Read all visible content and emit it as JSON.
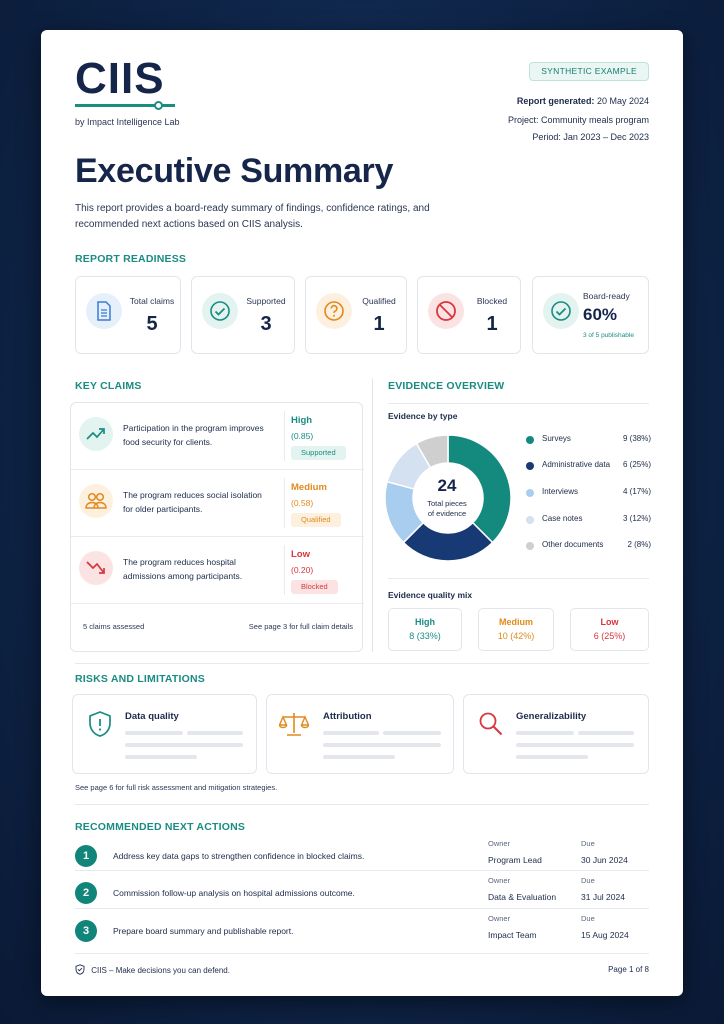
{
  "header": {
    "logo": "CIIS",
    "byline": "by Impact Intelligence Lab",
    "badge": "SYNTHETIC EXAMPLE",
    "report_generated_label": "Report generated:",
    "report_generated": "20 May 2024",
    "project_label": "Project:",
    "project": "Community meals program",
    "period_label": "Period:",
    "period": "Jan 2023 – Dec 2023"
  },
  "title": "Executive Summary",
  "intro": "This report provides a board-ready summary of findings, confidence ratings, and recommended next actions based on CIIS analysis.",
  "readiness": {
    "title": "REPORT READINESS",
    "stats": [
      {
        "label": "Total claims",
        "value": "5",
        "icon": "document-icon",
        "color": "#3a7bd5",
        "bg": "#e6f0fb"
      },
      {
        "label": "Supported",
        "value": "3",
        "icon": "check-circle-icon",
        "color": "#1a8c82",
        "bg": "#e3f3ef"
      },
      {
        "label": "Qualified",
        "value": "1",
        "icon": "question-circle-icon",
        "color": "#e08a1e",
        "bg": "#fdf0de"
      },
      {
        "label": "Blocked",
        "value": "1",
        "icon": "block-icon",
        "color": "#d9363e",
        "bg": "#fbe3e4"
      },
      {
        "label": "Board-ready",
        "value": "60%",
        "sub": "3 of 5 publishable",
        "icon": "check-circle-icon",
        "color": "#1a8c82",
        "bg": "#e3f3ef"
      }
    ]
  },
  "key_claims": {
    "title": "KEY CLAIMS",
    "claims": [
      {
        "text": "Participation in the program improves food security for clients.",
        "level": "High",
        "score": "(0.85)",
        "badge": "Supported",
        "color": "#1a8c82",
        "badge_bg": "#e3f3ef",
        "icon": "trend-up-icon",
        "icon_bg": "#e3f3ef"
      },
      {
        "text": "The program reduces social isolation for older participants.",
        "level": "Medium",
        "score": "(0.58)",
        "badge": "Qualified",
        "color": "#e08a1e",
        "badge_bg": "#fdf0de",
        "icon": "people-icon",
        "icon_bg": "#fdf0de"
      },
      {
        "text": "The program reduces hospital admissions among participants.",
        "level": "Low",
        "score": "(0.20)",
        "badge": "Blocked",
        "color": "#d9363e",
        "badge_bg": "#fbe3e4",
        "icon": "trend-down-icon",
        "icon_bg": "#fbe3e4"
      }
    ],
    "footer_left": "5 claims assessed",
    "footer_right": "See page 3 for full claim details"
  },
  "evidence": {
    "title": "EVIDENCE OVERVIEW",
    "by_type_title": "Evidence by type",
    "center_value": "24",
    "center_label_1": "Total pieces",
    "center_label_2": "of evidence",
    "quality_title": "Evidence quality mix",
    "quality": [
      {
        "label": "High",
        "value": "8 (33%)",
        "color": "#1a8c82"
      },
      {
        "label": "Medium",
        "value": "10 (42%)",
        "color": "#e08a1e"
      },
      {
        "label": "Low",
        "value": "6 (25%)",
        "color": "#d9363e"
      }
    ]
  },
  "chart_data": {
    "type": "pie",
    "categories": [
      "Surveys",
      "Administrative data",
      "Interviews",
      "Case notes",
      "Other documents"
    ],
    "values": [
      9,
      6,
      4,
      3,
      2
    ],
    "labels": [
      "9 (38%)",
      "6 (25%)",
      "4 (17%)",
      "3 (12%)",
      "2 (8%)"
    ],
    "colors": [
      "#14897e",
      "#173a75",
      "#a9cdee",
      "#d3e1f0",
      "#cfcfcf"
    ],
    "title": "Evidence by type",
    "donut": true
  },
  "risks": {
    "title": "RISKS AND LIMITATIONS",
    "items": [
      {
        "label": "Data quality",
        "icon": "shield-alert-icon"
      },
      {
        "label": "Attribution",
        "icon": "scales-icon"
      },
      {
        "label": "Generalizability",
        "icon": "magnifier-icon"
      }
    ],
    "note": "See page 6 for full risk assessment and mitigation strategies."
  },
  "actions": {
    "title": "RECOMMENDED NEXT ACTIONS",
    "owner_label": "Owner",
    "due_label": "Due",
    "items": [
      {
        "num": "1",
        "text": "Address key data gaps to strengthen confidence in blocked claims.",
        "owner": "Program Lead",
        "due": "30 Jun 2024"
      },
      {
        "num": "2",
        "text": "Commission follow-up analysis on hospital admissions outcome.",
        "owner": "Data & Evaluation",
        "due": "31 Jul 2024"
      },
      {
        "num": "3",
        "text": "Prepare board summary and publishable report.",
        "owner": "Impact Team",
        "due": "15 Aug 2024"
      }
    ]
  },
  "footer": {
    "tagline": "CIIS – Make decisions you can defend.",
    "page": "Page 1 of 8"
  }
}
